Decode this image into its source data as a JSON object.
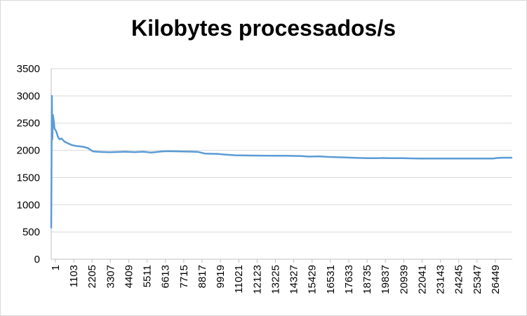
{
  "chart_data": {
    "type": "line",
    "title": "Kilobytes processados/s",
    "xlabel": "",
    "ylabel": "",
    "ylim": [
      0,
      3500
    ],
    "yticks": [
      0,
      500,
      1000,
      1500,
      2000,
      2500,
      3000,
      3500
    ],
    "xlim": [
      1,
      27600
    ],
    "xticks": [
      "1",
      "1103",
      "2205",
      "3307",
      "4409",
      "5511",
      "6613",
      "7715",
      "8817",
      "9919",
      "11021",
      "12123",
      "13225",
      "14327",
      "15429",
      "16531",
      "17633",
      "18735",
      "19837",
      "20939",
      "22041",
      "23143",
      "24245",
      "25347",
      "26449"
    ],
    "grid": true,
    "legend": "none",
    "series_color": "#5B9BD5",
    "series": [
      {
        "name": "Kilobytes processados/s",
        "x": [
          1,
          40,
          70,
          100,
          150,
          200,
          300,
          400,
          500,
          600,
          800,
          1000,
          1200,
          1500,
          1800,
          2000,
          2205,
          2500,
          3000,
          3500,
          4000,
          4409,
          5000,
          5511,
          6000,
          6613,
          7000,
          7715,
          8500,
          8817,
          9200,
          9919,
          10500,
          11021,
          12000,
          13000,
          14000,
          15000,
          15429,
          16000,
          16531,
          17000,
          17633,
          18500,
          19000,
          19500,
          19837,
          20200,
          20500,
          21000,
          22000,
          23000,
          24000,
          25000,
          26449,
          26700,
          27000,
          27600
        ],
        "values": [
          570,
          3000,
          2200,
          2650,
          2550,
          2400,
          2350,
          2250,
          2200,
          2220,
          2160,
          2130,
          2100,
          2080,
          2070,
          2060,
          2040,
          1980,
          1970,
          1965,
          1970,
          1975,
          1968,
          1975,
          1960,
          1980,
          1985,
          1980,
          1975,
          1970,
          1940,
          1935,
          1920,
          1910,
          1905,
          1900,
          1900,
          1895,
          1885,
          1890,
          1880,
          1875,
          1870,
          1860,
          1855,
          1855,
          1860,
          1855,
          1855,
          1855,
          1850,
          1850,
          1850,
          1850,
          1850,
          1860,
          1865,
          1865
        ]
      }
    ]
  }
}
